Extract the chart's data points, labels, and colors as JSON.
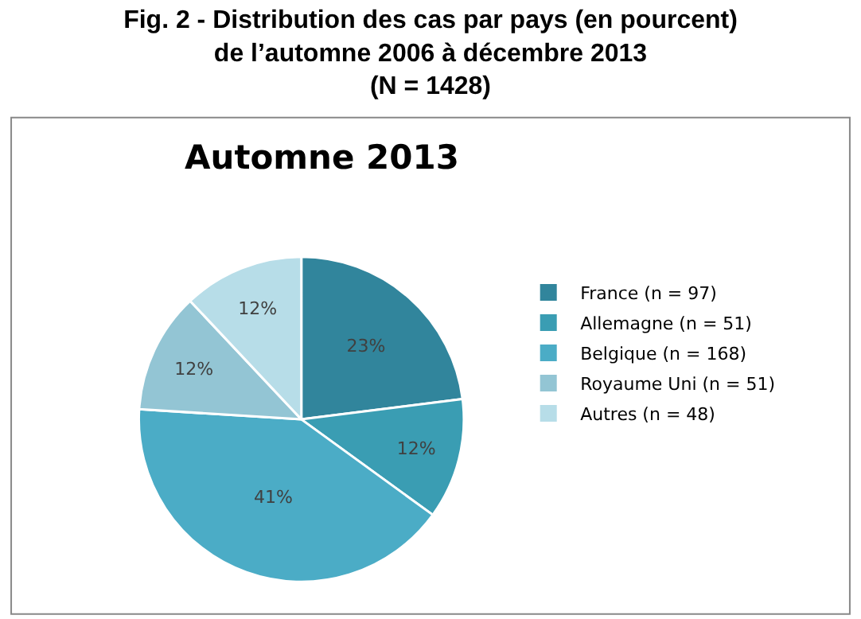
{
  "chart_data": {
    "type": "pie",
    "title": "Fig. 2 - Distribution des cas par pays (en pourcent)\nde l’automne 2006 à décembre 2013\n(N = 1428)",
    "subtitle": "Automne 2013",
    "categories": [
      "France (n = 97)",
      "Allemagne (n = 51)",
      "Belgique (n = 168)",
      "Royaume Uni (n = 51)",
      "Autres (n = 48)"
    ],
    "values": [
      23,
      12,
      41,
      12,
      12
    ],
    "value_labels": [
      "23%",
      "12%",
      "41%",
      "12%",
      "12%"
    ],
    "colors": [
      "#31859c",
      "#3a9db3",
      "#4bacc6",
      "#93c5d4",
      "#b7dde8"
    ],
    "legend": "right"
  }
}
